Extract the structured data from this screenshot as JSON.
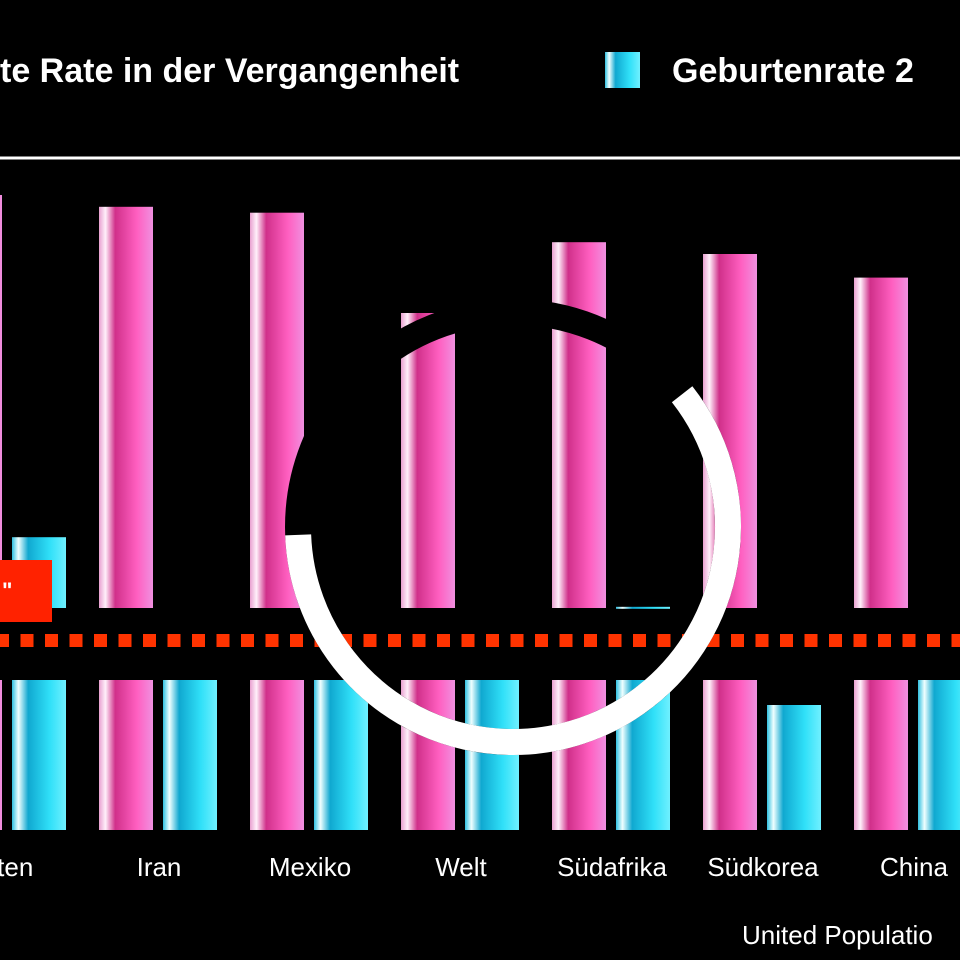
{
  "chart_data": {
    "type": "bar",
    "broken_axis": true,
    "legend": {
      "position": "top",
      "entries": [
        {
          "label": "te Rate in der Vergangenheit",
          "color": "#ff4fb8"
        },
        {
          "label": "Geburtenrate 2",
          "color": "#19d8f0"
        }
      ]
    },
    "categories": [
      "pten",
      "Iran",
      "Mexiko",
      "Welt",
      "Südafrika",
      "Südkorea",
      "China"
    ],
    "series": [
      {
        "values": [
          5.9,
          5.8,
          5.75,
          4.9,
          5.5,
          5.4,
          5.2
        ],
        "color": "#ff4fb8"
      },
      {
        "values": [
          3.0,
          1.9,
          1.9,
          1.9,
          2.41,
          1.0,
          1.9
        ],
        "color": "#19d8f0"
      }
    ],
    "reference_line": {
      "value": 2.1,
      "color": "#ff3300",
      "style": "dotted"
    },
    "callout": {
      "text": "\"",
      "color": "#ff2200"
    },
    "source": "United Populatio",
    "grid": false
  },
  "overlay": {
    "type": "loading-spinner",
    "arc_color": "#ffffff",
    "track_color": "#000000"
  }
}
